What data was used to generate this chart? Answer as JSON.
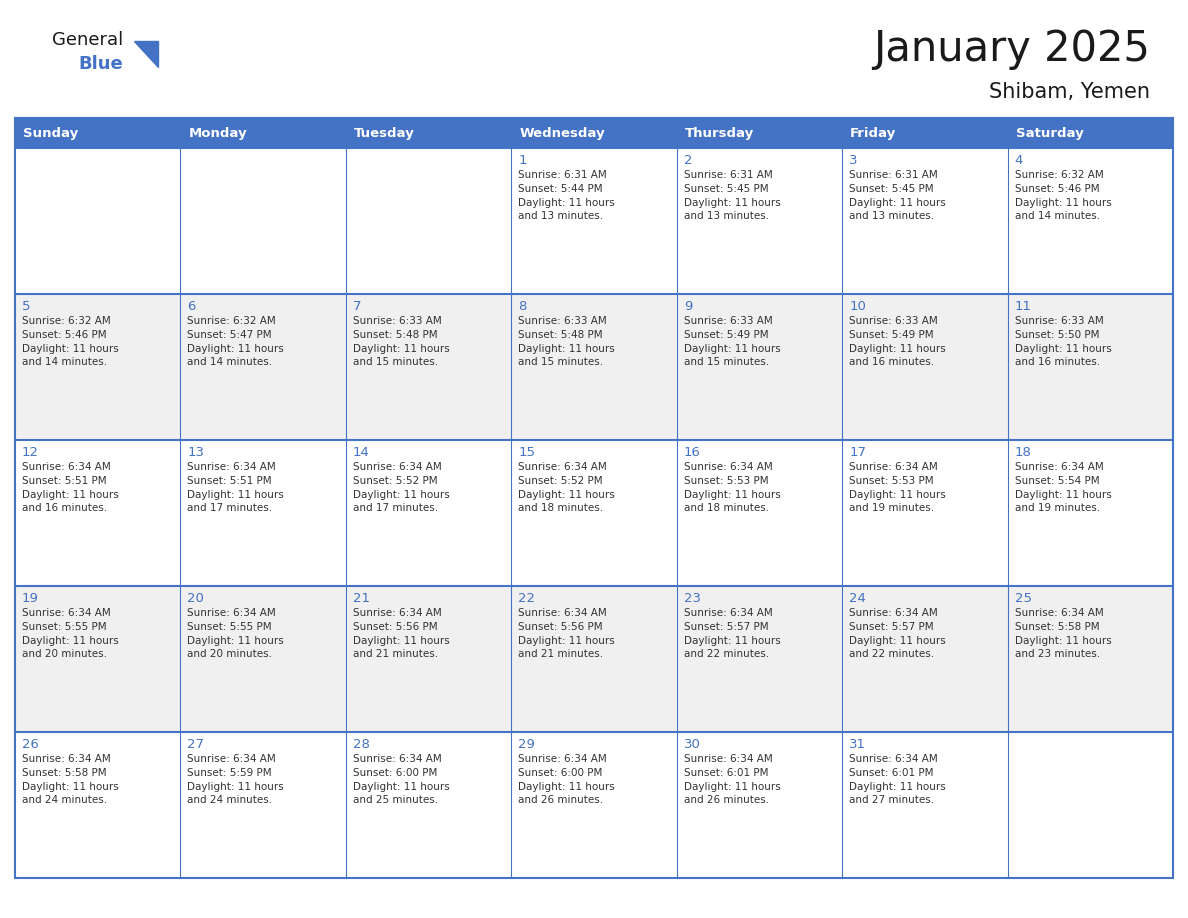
{
  "title": "January 2025",
  "subtitle": "Shibam, Yemen",
  "days_of_week": [
    "Sunday",
    "Monday",
    "Tuesday",
    "Wednesday",
    "Thursday",
    "Friday",
    "Saturday"
  ],
  "header_bg": "#4472C4",
  "header_text_color": "#FFFFFF",
  "cell_bg_white": "#FFFFFF",
  "cell_bg_gray": "#F0F0F0",
  "border_color": "#4472C4",
  "row_divider_color": "#4472C4",
  "day_num_color": "#4472C4",
  "cell_text_color": "#333333",
  "title_color": "#1a1a1a",
  "subtitle_color": "#1a1a1a",
  "logo_general_color": "#1a1a1a",
  "logo_blue_color": "#4472C4",
  "weeks": [
    {
      "days": [
        {
          "day": null,
          "sunrise": null,
          "sunset": null,
          "daylight": null
        },
        {
          "day": null,
          "sunrise": null,
          "sunset": null,
          "daylight": null
        },
        {
          "day": null,
          "sunrise": null,
          "sunset": null,
          "daylight": null
        },
        {
          "day": 1,
          "sunrise": "6:31 AM",
          "sunset": "5:44 PM",
          "daylight": "11 hours and 13 minutes."
        },
        {
          "day": 2,
          "sunrise": "6:31 AM",
          "sunset": "5:45 PM",
          "daylight": "11 hours and 13 minutes."
        },
        {
          "day": 3,
          "sunrise": "6:31 AM",
          "sunset": "5:45 PM",
          "daylight": "11 hours and 13 minutes."
        },
        {
          "day": 4,
          "sunrise": "6:32 AM",
          "sunset": "5:46 PM",
          "daylight": "11 hours and 14 minutes."
        }
      ]
    },
    {
      "days": [
        {
          "day": 5,
          "sunrise": "6:32 AM",
          "sunset": "5:46 PM",
          "daylight": "11 hours and 14 minutes."
        },
        {
          "day": 6,
          "sunrise": "6:32 AM",
          "sunset": "5:47 PM",
          "daylight": "11 hours and 14 minutes."
        },
        {
          "day": 7,
          "sunrise": "6:33 AM",
          "sunset": "5:48 PM",
          "daylight": "11 hours and 15 minutes."
        },
        {
          "day": 8,
          "sunrise": "6:33 AM",
          "sunset": "5:48 PM",
          "daylight": "11 hours and 15 minutes."
        },
        {
          "day": 9,
          "sunrise": "6:33 AM",
          "sunset": "5:49 PM",
          "daylight": "11 hours and 15 minutes."
        },
        {
          "day": 10,
          "sunrise": "6:33 AM",
          "sunset": "5:49 PM",
          "daylight": "11 hours and 16 minutes."
        },
        {
          "day": 11,
          "sunrise": "6:33 AM",
          "sunset": "5:50 PM",
          "daylight": "11 hours and 16 minutes."
        }
      ]
    },
    {
      "days": [
        {
          "day": 12,
          "sunrise": "6:34 AM",
          "sunset": "5:51 PM",
          "daylight": "11 hours and 16 minutes."
        },
        {
          "day": 13,
          "sunrise": "6:34 AM",
          "sunset": "5:51 PM",
          "daylight": "11 hours and 17 minutes."
        },
        {
          "day": 14,
          "sunrise": "6:34 AM",
          "sunset": "5:52 PM",
          "daylight": "11 hours and 17 minutes."
        },
        {
          "day": 15,
          "sunrise": "6:34 AM",
          "sunset": "5:52 PM",
          "daylight": "11 hours and 18 minutes."
        },
        {
          "day": 16,
          "sunrise": "6:34 AM",
          "sunset": "5:53 PM",
          "daylight": "11 hours and 18 minutes."
        },
        {
          "day": 17,
          "sunrise": "6:34 AM",
          "sunset": "5:53 PM",
          "daylight": "11 hours and 19 minutes."
        },
        {
          "day": 18,
          "sunrise": "6:34 AM",
          "sunset": "5:54 PM",
          "daylight": "11 hours and 19 minutes."
        }
      ]
    },
    {
      "days": [
        {
          "day": 19,
          "sunrise": "6:34 AM",
          "sunset": "5:55 PM",
          "daylight": "11 hours and 20 minutes."
        },
        {
          "day": 20,
          "sunrise": "6:34 AM",
          "sunset": "5:55 PM",
          "daylight": "11 hours and 20 minutes."
        },
        {
          "day": 21,
          "sunrise": "6:34 AM",
          "sunset": "5:56 PM",
          "daylight": "11 hours and 21 minutes."
        },
        {
          "day": 22,
          "sunrise": "6:34 AM",
          "sunset": "5:56 PM",
          "daylight": "11 hours and 21 minutes."
        },
        {
          "day": 23,
          "sunrise": "6:34 AM",
          "sunset": "5:57 PM",
          "daylight": "11 hours and 22 minutes."
        },
        {
          "day": 24,
          "sunrise": "6:34 AM",
          "sunset": "5:57 PM",
          "daylight": "11 hours and 22 minutes."
        },
        {
          "day": 25,
          "sunrise": "6:34 AM",
          "sunset": "5:58 PM",
          "daylight": "11 hours and 23 minutes."
        }
      ]
    },
    {
      "days": [
        {
          "day": 26,
          "sunrise": "6:34 AM",
          "sunset": "5:58 PM",
          "daylight": "11 hours and 24 minutes."
        },
        {
          "day": 27,
          "sunrise": "6:34 AM",
          "sunset": "5:59 PM",
          "daylight": "11 hours and 24 minutes."
        },
        {
          "day": 28,
          "sunrise": "6:34 AM",
          "sunset": "6:00 PM",
          "daylight": "11 hours and 25 minutes."
        },
        {
          "day": 29,
          "sunrise": "6:34 AM",
          "sunset": "6:00 PM",
          "daylight": "11 hours and 26 minutes."
        },
        {
          "day": 30,
          "sunrise": "6:34 AM",
          "sunset": "6:01 PM",
          "daylight": "11 hours and 26 minutes."
        },
        {
          "day": 31,
          "sunrise": "6:34 AM",
          "sunset": "6:01 PM",
          "daylight": "11 hours and 27 minutes."
        },
        {
          "day": null,
          "sunrise": null,
          "sunset": null,
          "daylight": null
        }
      ]
    }
  ]
}
